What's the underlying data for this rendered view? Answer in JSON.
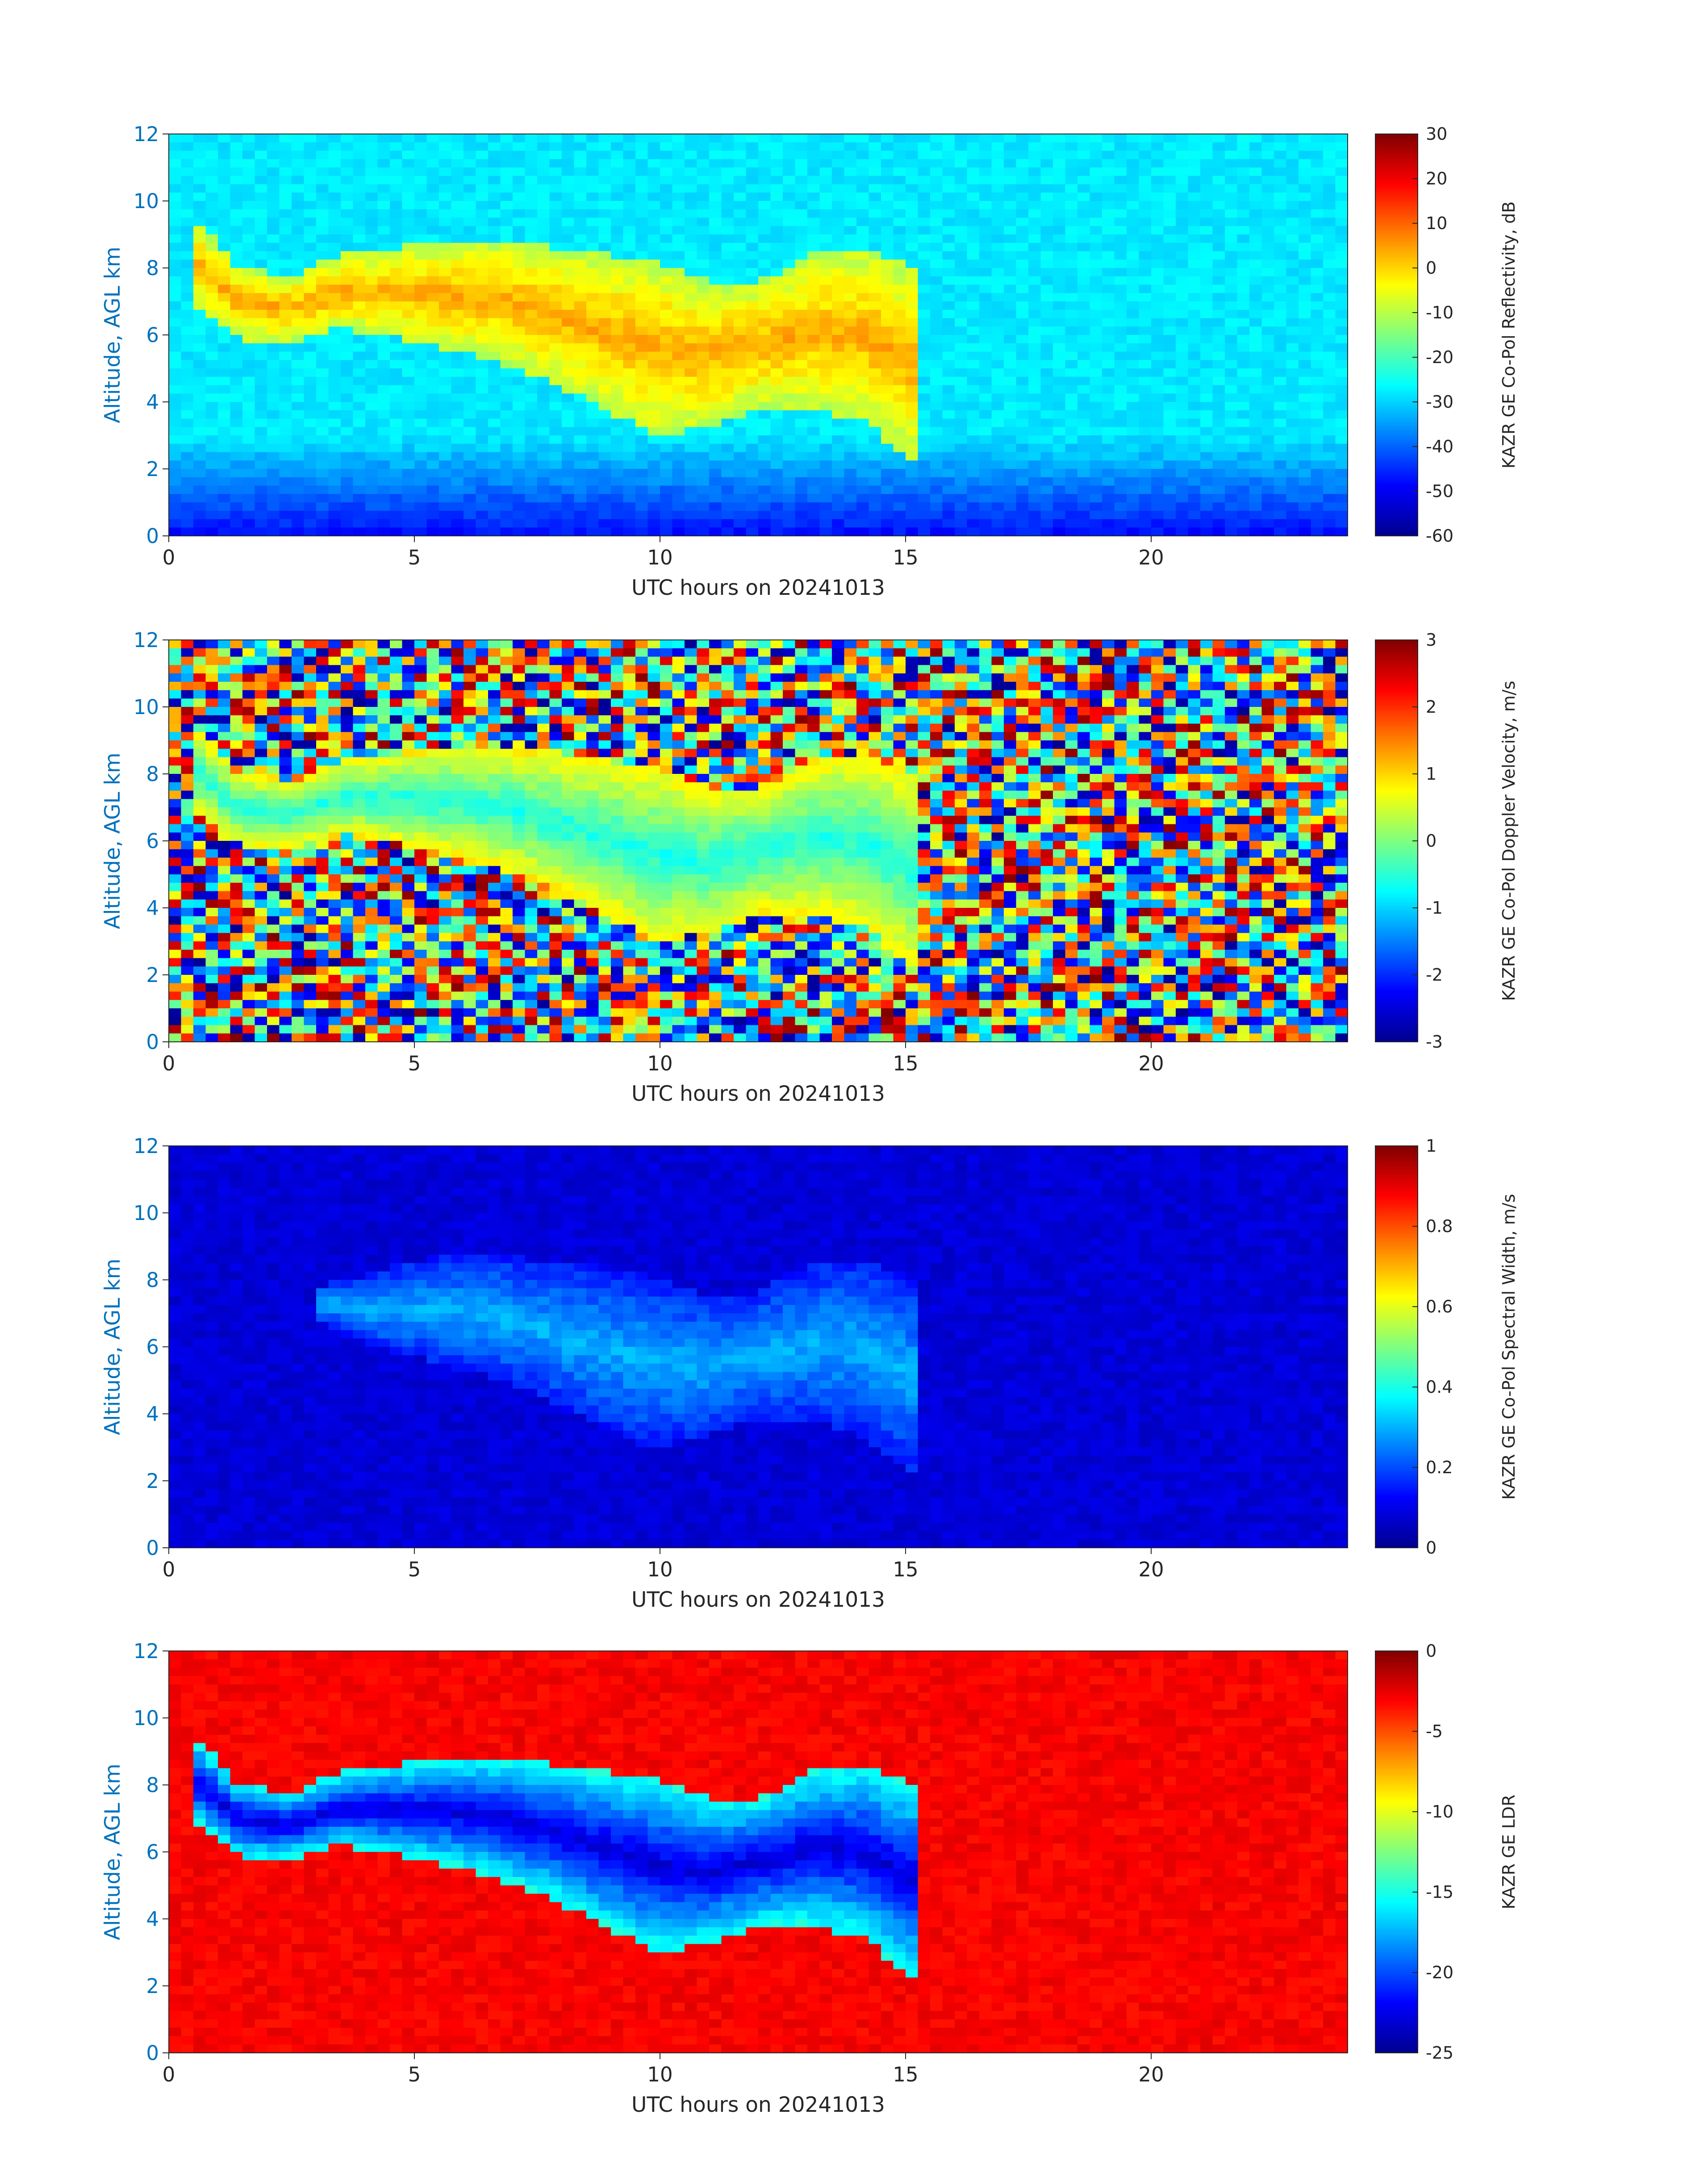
{
  "colors": {
    "axis_text": "#262626",
    "ylabel": "#0072BD",
    "jet_stops": [
      "#00008F",
      "#0000FF",
      "#00FFFF",
      "#FFFF00",
      "#FF0000",
      "#800000"
    ]
  },
  "chart_data": [
    {
      "type": "heatmap",
      "xlabel": "UTC hours on 20241013",
      "ylabel": "Altitude, AGL km",
      "xlim": [
        0,
        24
      ],
      "ylim": [
        0,
        12
      ],
      "xticks": [
        "0",
        "5",
        "10",
        "15",
        "20"
      ],
      "yticks": [
        "0",
        "2",
        "4",
        "6",
        "8",
        "10",
        "12"
      ],
      "colorbar": {
        "label": "KAZR GE Co-Pol Reflectivity, dB",
        "range": [
          -60,
          30
        ],
        "ticks": [
          "30",
          "20",
          "10",
          "0",
          "-10",
          "-20",
          "-30",
          "-40",
          "-50",
          "-60"
        ]
      },
      "background_value": -28,
      "cloud": {
        "start_hour": 0.4,
        "end_hour": 15.2,
        "top_km": [
          9.6,
          8.0,
          7.8,
          8.4,
          8.6,
          8.8,
          8.8,
          8.6,
          8.4,
          8.2,
          7.6,
          7.6,
          8.4,
          8.6,
          8.0
        ],
        "base_km": [
          7.0,
          5.8,
          5.8,
          6.2,
          5.9,
          5.6,
          5.2,
          4.6,
          3.8,
          3.0,
          3.2,
          3.8,
          3.8,
          3.4,
          2.2
        ],
        "value_core": 4,
        "value_edge": -10
      }
    },
    {
      "type": "heatmap",
      "xlabel": "UTC hours on 20241013",
      "ylabel": "Altitude, AGL km",
      "xlim": [
        0,
        24
      ],
      "ylim": [
        0,
        12
      ],
      "xticks": [
        "0",
        "5",
        "10",
        "15",
        "20"
      ],
      "yticks": [
        "0",
        "2",
        "4",
        "6",
        "8",
        "10",
        "12"
      ],
      "colorbar": {
        "label": "KAZR GE Co-Pol Doppler Velocity, m/s",
        "range": [
          -3,
          3
        ],
        "ticks": [
          "3",
          "2",
          "1",
          "0",
          "-1",
          "-2",
          "-3"
        ]
      },
      "background_value": "noise",
      "cloud": {
        "start_hour": 0.4,
        "end_hour": 15.2,
        "top_km": [
          9.6,
          8.0,
          7.8,
          8.4,
          8.6,
          8.8,
          8.8,
          8.6,
          8.4,
          8.2,
          7.6,
          7.6,
          8.4,
          8.6,
          8.0
        ],
        "base_km": [
          7.0,
          5.8,
          5.8,
          6.2,
          5.9,
          5.6,
          5.2,
          4.6,
          3.8,
          3.0,
          3.2,
          3.8,
          3.8,
          3.4,
          2.2
        ],
        "value_core": -0.6,
        "value_edge": 0.8
      }
    },
    {
      "type": "heatmap",
      "xlabel": "UTC hours on 20241013",
      "ylabel": "Altitude, AGL km",
      "xlim": [
        0,
        24
      ],
      "ylim": [
        0,
        12
      ],
      "xticks": [
        "0",
        "5",
        "10",
        "15",
        "20"
      ],
      "yticks": [
        "0",
        "2",
        "4",
        "6",
        "8",
        "10",
        "12"
      ],
      "colorbar": {
        "label": "KAZR GE Co-Pol Spectral Width, m/s",
        "range": [
          0,
          1
        ],
        "ticks": [
          "1",
          "0.8",
          "0.6",
          "0.4",
          "0.2",
          "0"
        ]
      },
      "background_value": 0.08,
      "cloud": {
        "start_hour": 3.0,
        "end_hour": 15.2,
        "top_km": [
          7.8,
          8.2,
          8.6,
          8.8,
          8.6,
          8.4,
          8.2,
          7.6,
          7.6,
          8.4,
          8.6,
          8.0
        ],
        "base_km": [
          6.8,
          6.0,
          5.6,
          5.2,
          4.6,
          3.8,
          3.0,
          3.2,
          3.8,
          3.8,
          3.4,
          2.2
        ],
        "value_core": 0.3,
        "value_edge": 0.15
      }
    },
    {
      "type": "heatmap",
      "xlabel": "UTC hours on 20241013",
      "ylabel": "Altitude, AGL km",
      "xlim": [
        0,
        24
      ],
      "ylim": [
        0,
        12
      ],
      "xticks": [
        "0",
        "5",
        "10",
        "15",
        "20"
      ],
      "yticks": [
        "0",
        "2",
        "4",
        "6",
        "8",
        "10",
        "12"
      ],
      "colorbar": {
        "label": "KAZR GE LDR",
        "range": [
          -25,
          0
        ],
        "ticks": [
          "0",
          "-5",
          "-10",
          "-15",
          "-20",
          "-25"
        ]
      },
      "background_value": -3,
      "cloud": {
        "start_hour": 0.4,
        "end_hour": 15.2,
        "top_km": [
          9.6,
          8.0,
          7.8,
          8.4,
          8.6,
          8.8,
          8.8,
          8.6,
          8.4,
          8.2,
          7.6,
          7.6,
          8.4,
          8.6,
          8.0
        ],
        "base_km": [
          7.0,
          5.8,
          5.8,
          6.2,
          5.9,
          5.6,
          5.2,
          4.6,
          3.8,
          3.0,
          3.2,
          3.8,
          3.8,
          3.4,
          2.2
        ],
        "value_core": -23,
        "value_edge": -15
      }
    }
  ]
}
